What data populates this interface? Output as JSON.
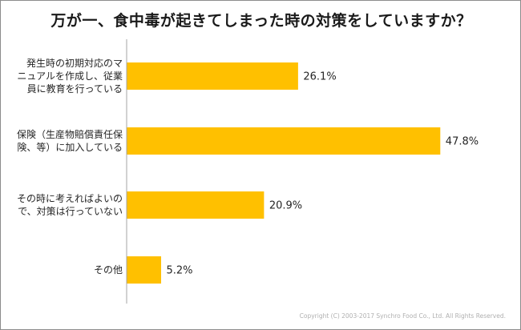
{
  "chart_data": {
    "type": "bar",
    "orientation": "horizontal",
    "title": "万が一、食中毒が起きてしまった時の対策をしていますか？",
    "categories": [
      "発生時の初期対応のマ\nニュアルを作成し、従業\n員に教育を行っている",
      "保険（生産物賠償責任保\n険、等）に加入している",
      "その時に考えればよいの\nで、対策は行っていない",
      "その他"
    ],
    "values": [
      26.1,
      47.8,
      20.9,
      5.2
    ],
    "value_labels": [
      "26.1%",
      "47.8%",
      "20.9%",
      "5.2%"
    ],
    "xlim": [
      0,
      50
    ],
    "bar_color": "#FFC000",
    "axis_color": "#A6A6A6",
    "grid": false,
    "legend": "none"
  },
  "copyright": "Copyright (C) 2003-2017 Synchro Food Co., Ltd. All Rights Reserved."
}
